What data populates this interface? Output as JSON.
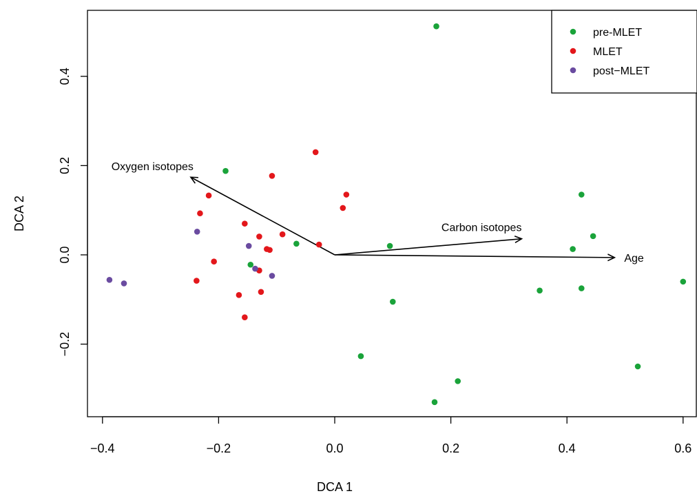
{
  "chart_data": {
    "type": "scatter",
    "title": "",
    "xlabel": "DCA 1",
    "ylabel": "DCA 2",
    "xlim": [
      -0.42,
      0.62
    ],
    "ylim": [
      -0.36,
      0.55
    ],
    "x_ticks": [
      {
        "value": -0.4,
        "label": "−0.4"
      },
      {
        "value": -0.2,
        "label": "−0.2"
      },
      {
        "value": 0.0,
        "label": "0.0"
      },
      {
        "value": 0.2,
        "label": "0.2"
      },
      {
        "value": 0.4,
        "label": "0.4"
      },
      {
        "value": 0.6,
        "label": "0.6"
      }
    ],
    "y_ticks": [
      {
        "value": -0.2,
        "label": "−0.2"
      },
      {
        "value": 0.0,
        "label": "0.0"
      },
      {
        "value": 0.2,
        "label": "0.2"
      },
      {
        "value": 0.4,
        "label": "0.4"
      }
    ],
    "grid": false,
    "legend_position": "top-right",
    "series": [
      {
        "name": "pre-MLET",
        "color": "#1aa33a",
        "points": [
          [
            0.175,
            0.512
          ],
          [
            -0.188,
            0.188
          ],
          [
            0.425,
            0.135
          ],
          [
            0.445,
            0.042
          ],
          [
            0.41,
            0.013
          ],
          [
            -0.066,
            0.025
          ],
          [
            0.095,
            0.02
          ],
          [
            -0.145,
            -0.022
          ],
          [
            0.6,
            -0.06
          ],
          [
            0.353,
            -0.08
          ],
          [
            0.425,
            -0.075
          ],
          [
            0.1,
            -0.105
          ],
          [
            0.045,
            -0.227
          ],
          [
            0.522,
            -0.25
          ],
          [
            0.212,
            -0.283
          ],
          [
            0.172,
            -0.33
          ]
        ]
      },
      {
        "name": "MLET",
        "color": "#e3171b",
        "points": [
          [
            -0.033,
            0.23
          ],
          [
            -0.108,
            0.177
          ],
          [
            0.02,
            0.135
          ],
          [
            -0.217,
            0.133
          ],
          [
            0.014,
            0.105
          ],
          [
            -0.232,
            0.093
          ],
          [
            -0.155,
            0.07
          ],
          [
            -0.09,
            0.046
          ],
          [
            -0.13,
            0.041
          ],
          [
            -0.027,
            0.023
          ],
          [
            -0.117,
            0.013
          ],
          [
            -0.112,
            0.011
          ],
          [
            -0.208,
            -0.015
          ],
          [
            -0.13,
            -0.035
          ],
          [
            -0.238,
            -0.058
          ],
          [
            -0.127,
            -0.083
          ],
          [
            -0.165,
            -0.09
          ],
          [
            -0.155,
            -0.14
          ]
        ]
      },
      {
        "name": "post-MLET",
        "color": "#6a4ba0",
        "points": [
          [
            -0.237,
            0.052
          ],
          [
            -0.148,
            0.02
          ],
          [
            -0.137,
            -0.031
          ],
          [
            -0.108,
            -0.047
          ],
          [
            -0.388,
            -0.056
          ],
          [
            -0.363,
            -0.064
          ]
        ]
      }
    ],
    "vectors": [
      {
        "label": "Oxygen isotopes",
        "x": -0.248,
        "y": 0.174
      },
      {
        "label": "Carbon isotopes",
        "x": 0.322,
        "y": 0.036
      },
      {
        "label": "Age",
        "x": 0.482,
        "y": -0.006
      }
    ]
  }
}
